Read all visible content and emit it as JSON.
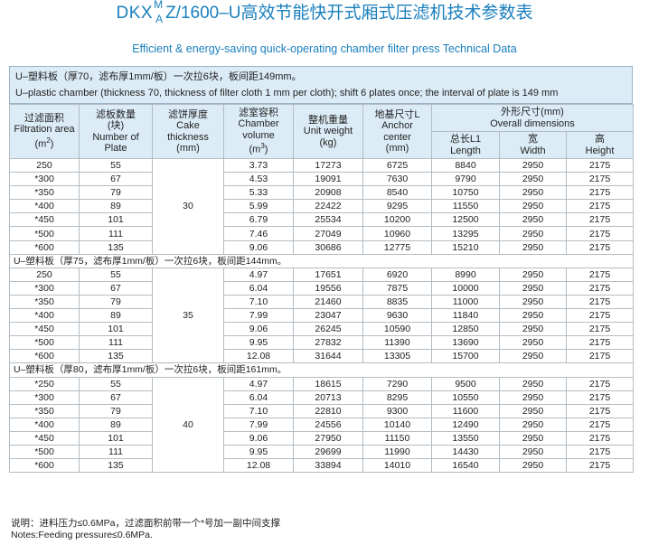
{
  "title": {
    "model_prefix": "DKX",
    "model_sup": "M",
    "model_sub": "A",
    "model_rest": "Z/1600–U高效节能快开式厢式压滤机技术参数表",
    "subtitle": "Efficient & energy-saving quick-operating chamber filter press Technical Data"
  },
  "intro": {
    "line_cn": "U–塑料板（厚70，滤布厚1mm/板）一次拉6块，板间距149mm。",
    "line_en": "U–plastic chamber (thickness 70, thickness of filter cloth 1 mm per cloth); shift 6 plates once; the interval of plate is 149 mm"
  },
  "headers": {
    "area": [
      "过滤面积",
      "Filtration area",
      "(m²)"
    ],
    "qty": [
      "滤板数量",
      "(块)",
      "Number of",
      "Plate"
    ],
    "cake": [
      "滤饼厚度",
      "Cake",
      "thickness",
      "(mm)"
    ],
    "volume": [
      "滤室容积",
      "Chamber",
      "volume",
      "(m³)"
    ],
    "weight": [
      "整机重量",
      "Unit weight",
      "(kg)"
    ],
    "anchor": [
      "地基尺寸L",
      "Anchor",
      "center",
      "(mm)"
    ],
    "overall": [
      "外形尺寸(mm)",
      "Overall  dimensions"
    ],
    "length": [
      "总长L1",
      "Length"
    ],
    "width": [
      "宽",
      "Width"
    ],
    "height": [
      "高",
      "Height"
    ]
  },
  "groups": [
    {
      "label": "",
      "cake": "30",
      "rows": [
        [
          "250",
          "55",
          "3.73",
          "17273",
          "6725",
          "8840",
          "2950",
          "2175"
        ],
        [
          "*300",
          "67",
          "4.53",
          "19091",
          "7630",
          "9790",
          "2950",
          "2175"
        ],
        [
          "*350",
          "79",
          "5.33",
          "20908",
          "8540",
          "10750",
          "2950",
          "2175"
        ],
        [
          "*400",
          "89",
          "5.99",
          "22422",
          "9295",
          "11550",
          "2950",
          "2175"
        ],
        [
          "*450",
          "101",
          "6.79",
          "25534",
          "10200",
          "12500",
          "2950",
          "2175"
        ],
        [
          "*500",
          "111",
          "7.46",
          "27049",
          "10960",
          "13295",
          "2950",
          "2175"
        ],
        [
          "*600",
          "135",
          "9.06",
          "30686",
          "12775",
          "15210",
          "2950",
          "2175"
        ]
      ]
    },
    {
      "label": "U–塑料板（厚75，滤布厚1mm/板）一次拉6块，板间距144mm。",
      "cake": "35",
      "rows": [
        [
          "250",
          "55",
          "4.97",
          "17651",
          "6920",
          "8990",
          "2950",
          "2175"
        ],
        [
          "*300",
          "67",
          "6.04",
          "19556",
          "7875",
          "10000",
          "2950",
          "2175"
        ],
        [
          "*350",
          "79",
          "7.10",
          "21460",
          "8835",
          "11000",
          "2950",
          "2175"
        ],
        [
          "*400",
          "89",
          "7.99",
          "23047",
          "9630",
          "11840",
          "2950",
          "2175"
        ],
        [
          "*450",
          "101",
          "9.06",
          "26245",
          "10590",
          "12850",
          "2950",
          "2175"
        ],
        [
          "*500",
          "111",
          "9.95",
          "27832",
          "11390",
          "13690",
          "2950",
          "2175"
        ],
        [
          "*600",
          "135",
          "12.08",
          "31644",
          "13305",
          "15700",
          "2950",
          "2175"
        ]
      ]
    },
    {
      "label": "U–塑料板（厚80，滤布厚1mm/板）一次拉6块，板间距161mm。",
      "cake": "40",
      "rows": [
        [
          "*250",
          "55",
          "4.97",
          "18615",
          "7290",
          "9500",
          "2950",
          "2175"
        ],
        [
          "*300",
          "67",
          "6.04",
          "20713",
          "8295",
          "10550",
          "2950",
          "2175"
        ],
        [
          "*350",
          "79",
          "7.10",
          "22810",
          "9300",
          "11600",
          "2950",
          "2175"
        ],
        [
          "*400",
          "89",
          "7.99",
          "24556",
          "10140",
          "12490",
          "2950",
          "2175"
        ],
        [
          "*450",
          "101",
          "9.06",
          "27950",
          "11150",
          "13550",
          "2950",
          "2175"
        ],
        [
          "*500",
          "111",
          "9.95",
          "29699",
          "11990",
          "14430",
          "2950",
          "2175"
        ],
        [
          "*600",
          "135",
          "12.08",
          "33894",
          "14010",
          "16540",
          "2950",
          "2175"
        ]
      ]
    }
  ],
  "footer": {
    "line_cn": "说明：进料压力≤0.6MPa，过滤面积前带一个*号加一副中间支撑",
    "line_en": "Notes:Feeding pressure≤0.6MPa."
  }
}
